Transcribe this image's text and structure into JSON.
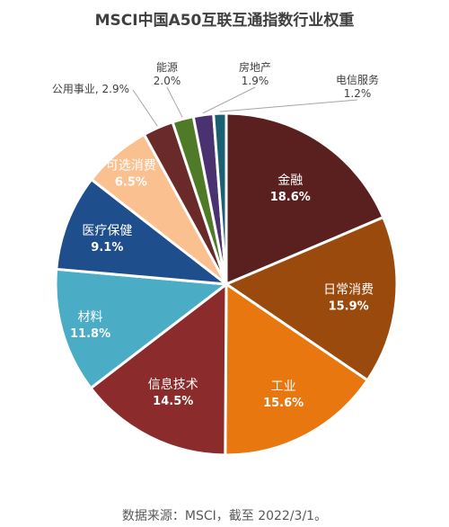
{
  "chart_data": {
    "type": "pie",
    "title": "MSCI中国A50互联互通指数行业权重",
    "slices": [
      {
        "name": "金融",
        "value": 18.6,
        "label": "18.6%",
        "color": "#5a2020"
      },
      {
        "name": "日常消费",
        "value": 15.9,
        "label": "15.9%",
        "color": "#9a4a0c"
      },
      {
        "name": "工业",
        "value": 15.6,
        "label": "15.6%",
        "color": "#e87710"
      },
      {
        "name": "信息技术",
        "value": 14.5,
        "label": "14.5%",
        "color": "#8b2b2b"
      },
      {
        "name": "材料",
        "value": 11.8,
        "label": "11.8%",
        "color": "#4bacc6"
      },
      {
        "name": "医疗保健",
        "value": 9.1,
        "label": "9.1%",
        "color": "#1f4e8c"
      },
      {
        "name": "可选消费",
        "value": 6.5,
        "label": "6.5%",
        "color": "#fac090"
      },
      {
        "name": "公用事业",
        "value": 2.9,
        "label": "2.9%",
        "color": "#6b2a2a"
      },
      {
        "name": "能源",
        "value": 2.0,
        "label": "2.0%",
        "color": "#4f7a28"
      },
      {
        "name": "房地产",
        "value": 1.9,
        "label": "1.9%",
        "color": "#4a3270"
      },
      {
        "name": "电信服务",
        "value": 1.2,
        "label": "1.2%",
        "color": "#1b5f73"
      }
    ],
    "legend": "none"
  },
  "footer": {
    "source": "数据来源：MSCI，截至 2022/3/1。"
  }
}
